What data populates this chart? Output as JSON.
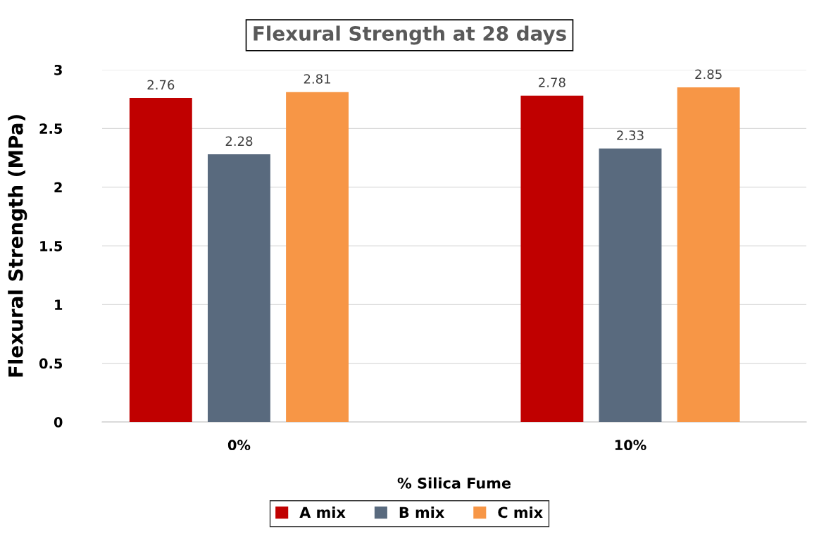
{
  "chart_data": {
    "type": "bar",
    "title": "Flexural Strength at 28 days",
    "xlabel": "% Silica Fume",
    "ylabel": "Flexural Strength (MPa)",
    "categories": [
      "0%",
      "10%"
    ],
    "series": [
      {
        "name": "A mix",
        "color": "#c00000",
        "values": [
          2.76,
          2.78
        ]
      },
      {
        "name": "B mix",
        "color": "#596a7e",
        "values": [
          2.28,
          2.33
        ]
      },
      {
        "name": "C mix",
        "color": "#f79646",
        "values": [
          2.81,
          2.85
        ]
      }
    ],
    "ylim": [
      0,
      3
    ],
    "yticks": [
      0,
      0.5,
      1,
      1.5,
      2,
      2.5,
      3
    ],
    "grid": "y",
    "legend": "bottom",
    "data_labels": true
  }
}
